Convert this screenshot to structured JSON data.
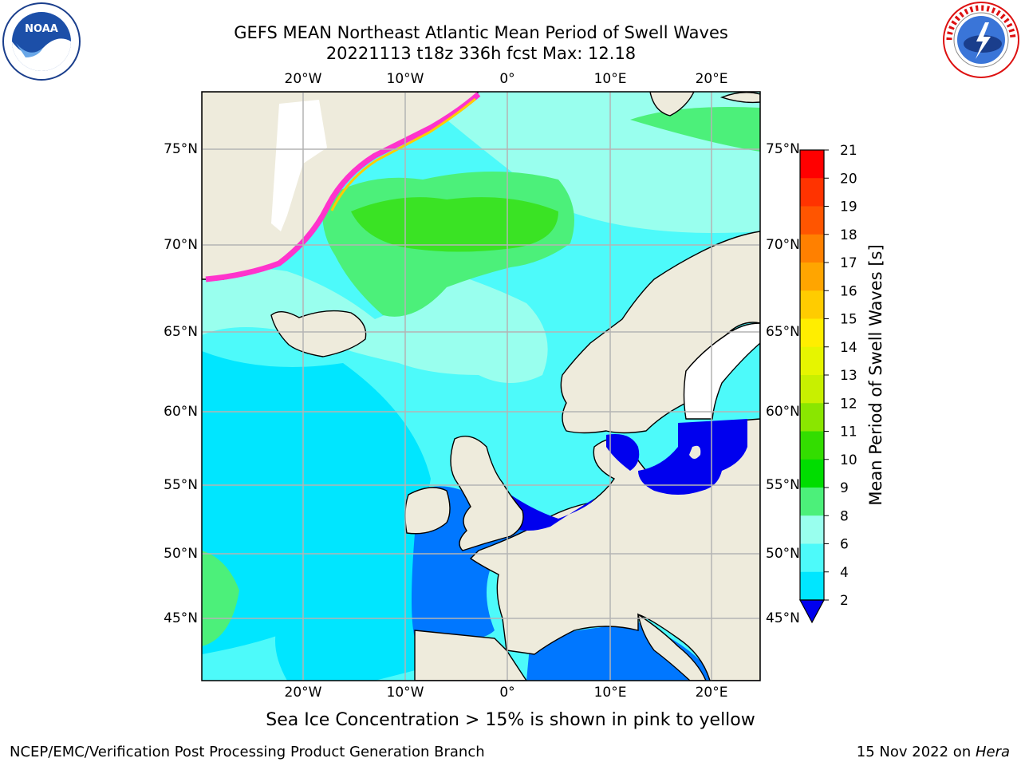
{
  "header": {
    "title_line1": "GEFS MEAN Northeast Atlantic Mean Period of Swell Waves",
    "title_line2": "20221113 t18z 336h fcst   Max: 12.18"
  },
  "logos": {
    "left": "NOAA",
    "right": "NATIONAL WEATHER SERVICE"
  },
  "map": {
    "lon_labels": [
      "20°W",
      "10°W",
      "0°",
      "10°E",
      "20°E"
    ],
    "lat_labels": [
      "75°N",
      "70°N",
      "65°N",
      "60°N",
      "55°N",
      "50°N",
      "45°N"
    ],
    "extent": {
      "lon": [
        -30,
        25
      ],
      "lat": [
        41,
        78
      ]
    }
  },
  "colorbar": {
    "label": "Mean Period of Swell Waves [s]",
    "ticks": [
      "21",
      "20",
      "19",
      "18",
      "17",
      "16",
      "15",
      "14",
      "13",
      "12",
      "11",
      "10",
      "9",
      "8",
      "6",
      "4",
      "2"
    ],
    "colors": [
      "#ff0000",
      "#ff3300",
      "#ff5500",
      "#ff8000",
      "#ffa500",
      "#ffcc00",
      "#ffee00",
      "#e6f500",
      "#c8f000",
      "#8ae600",
      "#33dd00",
      "#00dd00",
      "#4cf07a",
      "#99ffee",
      "#4dfafa",
      "#00e6ff",
      "#0077ff",
      "#0000ee"
    ]
  },
  "caption": "Sea Ice Concentration > 15% is shown in pink to yellow",
  "footer": {
    "left": "NCEP/EMC/Verification Post Processing Product Generation Branch",
    "right_prefix": "15 Nov 2022 on ",
    "right_host": "Hera"
  }
}
